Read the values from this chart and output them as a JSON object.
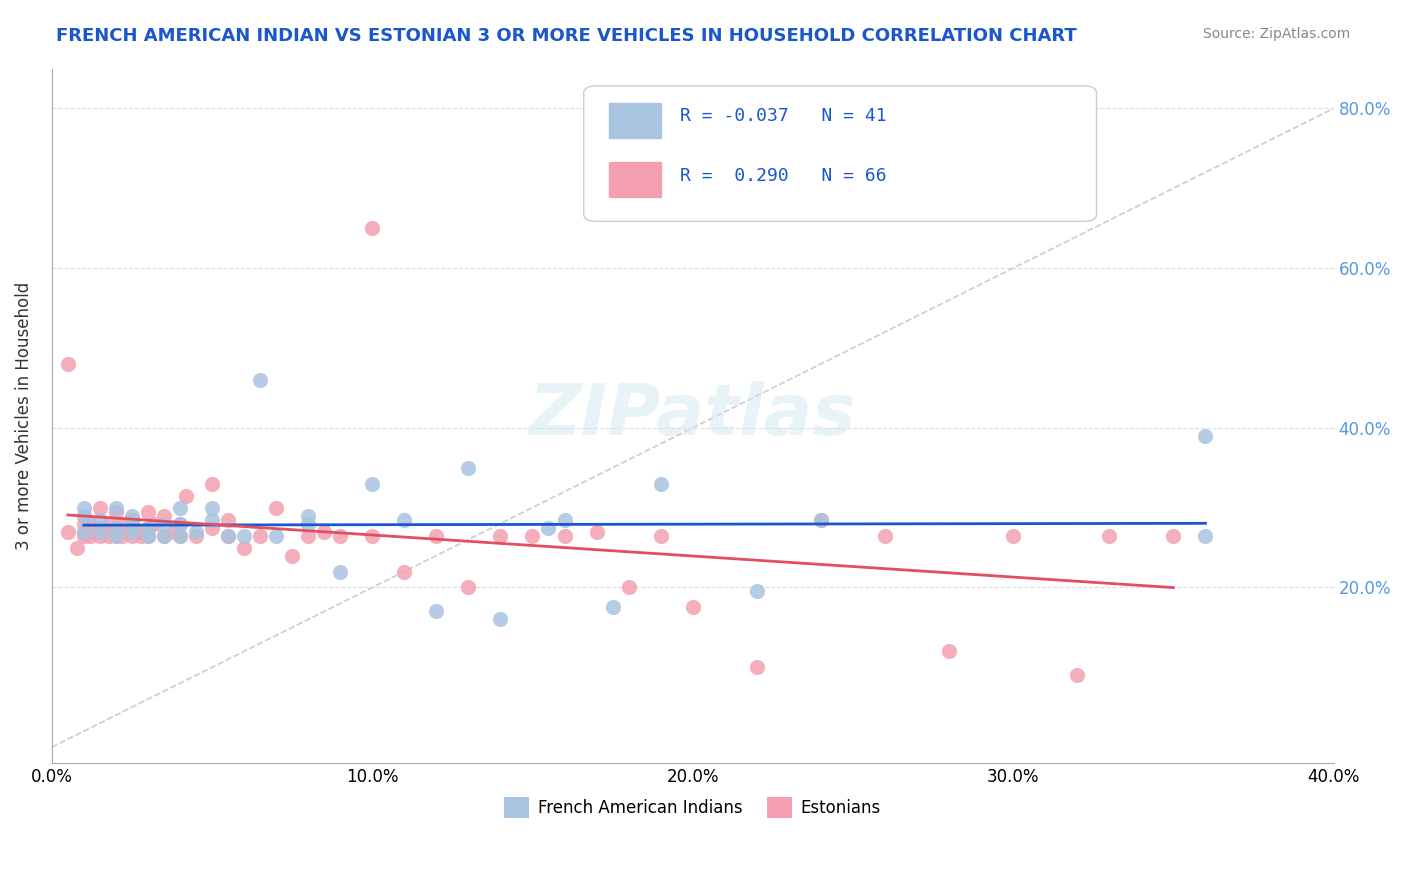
{
  "title": "FRENCH AMERICAN INDIAN VS ESTONIAN 3 OR MORE VEHICLES IN HOUSEHOLD CORRELATION CHART",
  "source": "Source: ZipAtlas.com",
  "ylabel": "3 or more Vehicles in Household",
  "xlabel": "",
  "xlim": [
    0.0,
    0.4
  ],
  "ylim": [
    -0.02,
    0.85
  ],
  "xtick_labels": [
    "0.0%",
    "10.0%",
    "20.0%",
    "30.0%",
    "40.0%"
  ],
  "xtick_vals": [
    0.0,
    0.1,
    0.2,
    0.3,
    0.4
  ],
  "ytick_labels": [
    "20.0%",
    "40.0%",
    "60.0%",
    "80.0%"
  ],
  "ytick_vals": [
    0.2,
    0.4,
    0.6,
    0.8
  ],
  "legend1_label": "French American Indians",
  "legend2_label": "Estonians",
  "r1": "-0.037",
  "n1": "41",
  "r2": "0.290",
  "n2": "66",
  "color1": "#a8c4e0",
  "color2": "#f4a0b0",
  "line1_color": "#1a56cc",
  "line2_color": "#e05060",
  "watermark": "ZIPatlas",
  "french_x": [
    0.01,
    0.01,
    0.01,
    0.015,
    0.015,
    0.02,
    0.02,
    0.02,
    0.025,
    0.025,
    0.025,
    0.03,
    0.03,
    0.035,
    0.035,
    0.04,
    0.04,
    0.04,
    0.045,
    0.05,
    0.05,
    0.055,
    0.06,
    0.065,
    0.07,
    0.08,
    0.08,
    0.09,
    0.1,
    0.11,
    0.12,
    0.13,
    0.14,
    0.155,
    0.16,
    0.175,
    0.19,
    0.22,
    0.24,
    0.36,
    0.36
  ],
  "french_y": [
    0.27,
    0.29,
    0.3,
    0.27,
    0.285,
    0.265,
    0.275,
    0.3,
    0.27,
    0.28,
    0.29,
    0.265,
    0.275,
    0.265,
    0.28,
    0.265,
    0.28,
    0.3,
    0.27,
    0.285,
    0.3,
    0.265,
    0.265,
    0.46,
    0.265,
    0.28,
    0.29,
    0.22,
    0.33,
    0.285,
    0.17,
    0.35,
    0.16,
    0.275,
    0.285,
    0.175,
    0.33,
    0.195,
    0.285,
    0.39,
    0.265
  ],
  "estonian_x": [
    0.005,
    0.005,
    0.008,
    0.01,
    0.01,
    0.01,
    0.01,
    0.012,
    0.012,
    0.015,
    0.015,
    0.015,
    0.018,
    0.018,
    0.02,
    0.02,
    0.02,
    0.022,
    0.022,
    0.025,
    0.025,
    0.025,
    0.028,
    0.028,
    0.03,
    0.03,
    0.03,
    0.032,
    0.035,
    0.035,
    0.038,
    0.04,
    0.04,
    0.042,
    0.045,
    0.05,
    0.05,
    0.055,
    0.055,
    0.06,
    0.065,
    0.07,
    0.075,
    0.08,
    0.085,
    0.09,
    0.1,
    0.1,
    0.11,
    0.12,
    0.13,
    0.14,
    0.15,
    0.16,
    0.17,
    0.18,
    0.19,
    0.2,
    0.22,
    0.24,
    0.26,
    0.28,
    0.3,
    0.32,
    0.33,
    0.35
  ],
  "estonian_y": [
    0.27,
    0.48,
    0.25,
    0.265,
    0.27,
    0.28,
    0.29,
    0.265,
    0.28,
    0.265,
    0.275,
    0.3,
    0.265,
    0.28,
    0.265,
    0.275,
    0.295,
    0.265,
    0.28,
    0.265,
    0.275,
    0.285,
    0.265,
    0.27,
    0.265,
    0.275,
    0.295,
    0.28,
    0.265,
    0.29,
    0.27,
    0.265,
    0.28,
    0.315,
    0.265,
    0.275,
    0.33,
    0.265,
    0.285,
    0.25,
    0.265,
    0.3,
    0.24,
    0.265,
    0.27,
    0.265,
    0.65,
    0.265,
    0.22,
    0.265,
    0.2,
    0.265,
    0.265,
    0.265,
    0.27,
    0.2,
    0.265,
    0.175,
    0.1,
    0.285,
    0.265,
    0.12,
    0.265,
    0.09,
    0.265,
    0.265
  ]
}
